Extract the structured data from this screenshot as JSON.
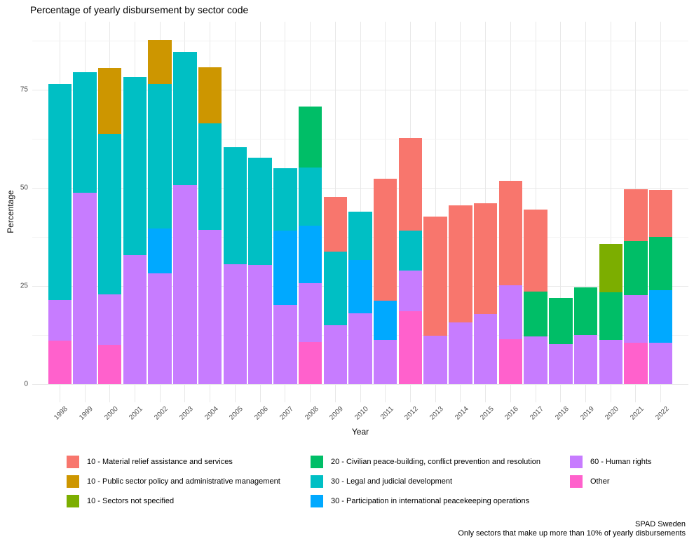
{
  "chart_data": {
    "type": "bar",
    "stacked": true,
    "title": "Percentage of yearly disbursement by sector code",
    "xlabel": "Year",
    "ylabel": "Percentage",
    "x": [
      "1998",
      "1999",
      "2000",
      "2001",
      "2002",
      "2003",
      "2004",
      "2005",
      "2006",
      "2007",
      "2008",
      "2009",
      "2010",
      "2011",
      "2012",
      "2013",
      "2014",
      "2015",
      "2016",
      "2017",
      "2018",
      "2019",
      "2020",
      "2021",
      "2022"
    ],
    "yticks": [
      0,
      25,
      50,
      75
    ],
    "yticks_minor": [
      12.5,
      37.5,
      62.5,
      87.5
    ],
    "ylim": [
      0,
      92
    ],
    "grid": true,
    "legend_position": "bottom",
    "series": [
      {
        "name": "10 - Material relief assistance and services",
        "color": "#F8766D",
        "values": [
          0,
          0,
          0,
          0,
          0,
          0,
          0,
          0,
          0,
          0,
          0,
          13.9,
          0,
          31.0,
          23.5,
          30.2,
          29.8,
          28.2,
          26.6,
          20.9,
          0,
          0,
          0,
          13.1,
          12.0
        ]
      },
      {
        "name": "10 - Public sector policy and administrative management",
        "color": "#CD9600",
        "values": [
          0,
          0,
          16.9,
          0,
          11.2,
          0,
          14.4,
          0,
          0,
          0,
          0,
          0,
          0,
          0,
          0,
          0,
          0,
          0,
          0,
          0,
          0,
          0,
          0,
          0,
          0
        ]
      },
      {
        "name": "10 - Sectors not specified",
        "color": "#7CAE00",
        "values": [
          0,
          0,
          0,
          0,
          0,
          0,
          0,
          0,
          0,
          0,
          0,
          0,
          0,
          0,
          0,
          0,
          0,
          0,
          0,
          0,
          0,
          0,
          12.3,
          0,
          0
        ]
      },
      {
        "name": "20 - Civilian peace-building, conflict prevention and resolution",
        "color": "#00BE67",
        "values": [
          0,
          0,
          0,
          0,
          0,
          0,
          0,
          0,
          0,
          0,
          15.7,
          0,
          0,
          0,
          0,
          0,
          0,
          0,
          0,
          11.4,
          11.9,
          12.2,
          12.2,
          13.9,
          13.6
        ]
      },
      {
        "name": "30 - Legal and judicial development",
        "color": "#00BFC4",
        "values": [
          55.0,
          30.6,
          40.8,
          45.5,
          36.8,
          34.0,
          27.1,
          29.8,
          27.3,
          15.9,
          14.8,
          18.7,
          12.3,
          0,
          10.2,
          0,
          0,
          0,
          0,
          0,
          0,
          0,
          0,
          0,
          0
        ]
      },
      {
        "name": "30 - Participation in international peacekeeping operations",
        "color": "#00A9FF",
        "values": [
          0,
          0,
          0,
          0,
          11.5,
          0,
          0,
          0,
          0,
          19.0,
          14.5,
          0,
          13.5,
          10.1,
          0,
          0,
          0,
          0,
          0,
          0,
          0,
          0,
          0,
          0,
          13.3
        ]
      },
      {
        "name": "60 - Human rights",
        "color": "#C77CFF",
        "values": [
          10.5,
          48.8,
          12.9,
          32.8,
          28.2,
          50.7,
          39.3,
          30.5,
          30.3,
          20.1,
          15.1,
          15.0,
          18.1,
          11.2,
          10.3,
          12.4,
          15.8,
          17.8,
          13.7,
          12.2,
          10.1,
          12.5,
          11.2,
          12.1,
          10.6
        ]
      },
      {
        "name": "Other",
        "color": "#FF61CC",
        "values": [
          11.0,
          0,
          10.0,
          0,
          0,
          0,
          0,
          0,
          0,
          0,
          10.7,
          0,
          0,
          0,
          18.6,
          0,
          0,
          0,
          11.5,
          0,
          0,
          0,
          0,
          10.5,
          0
        ]
      }
    ]
  },
  "caption": {
    "line1": "SPAD Sweden",
    "line2": "Only sectors that make up more than 10% of yearly disbursements"
  },
  "style": {
    "grid_major_color": "#E8E8E8",
    "grid_minor_color": "#F2F2F2",
    "tick_label_color": "#4d4d4d"
  }
}
